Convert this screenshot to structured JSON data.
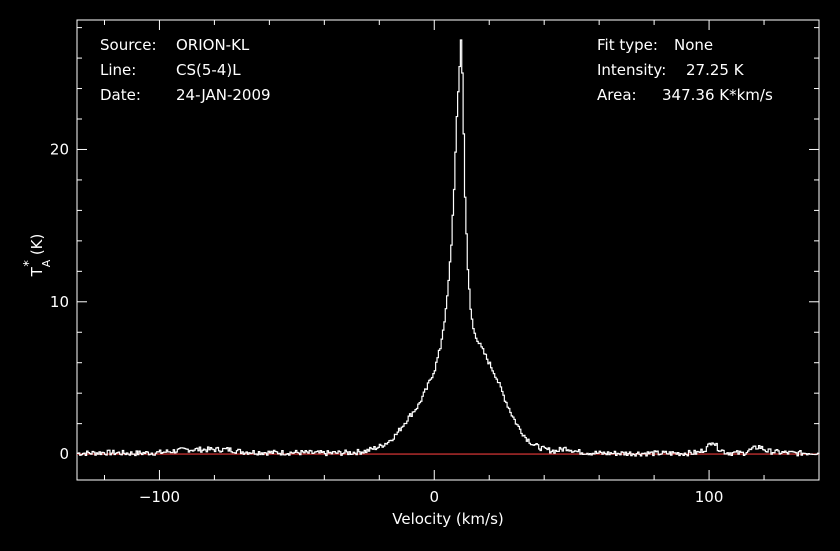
{
  "info": {
    "source_label": "Source:",
    "source_value": "ORION-KL",
    "line_label": "Line:",
    "line_value": "CS(5-4)L",
    "date_label": "Date:",
    "date_value": "24-JAN-2009",
    "fit_label": "Fit type:",
    "fit_value": "None",
    "intensity_label": "Intensity:",
    "intensity_value": "27.25 K",
    "area_label": "Area:",
    "area_value": "347.36 K*km/s"
  },
  "chart_data": {
    "type": "line",
    "title": "",
    "xlabel": "Velocity (km/s)",
    "ylabel_main": "T",
    "ylabel_sup": "*",
    "ylabel_sub": "A",
    "ylabel_unit": "(K)",
    "xlim": [
      -130,
      140
    ],
    "ylim": [
      -1.7,
      28.5
    ],
    "x_ticks": [
      {
        "value": -100,
        "label": "−100"
      },
      {
        "value": 0,
        "label": "0"
      },
      {
        "value": 100,
        "label": "100"
      }
    ],
    "y_ticks": [
      {
        "value": 0,
        "label": "0"
      },
      {
        "value": 10,
        "label": "10"
      },
      {
        "value": 20,
        "label": "20"
      }
    ],
    "grid": false,
    "series": [
      {
        "color": "#ffffff",
        "points": [
          [
            -130,
            0.05
          ],
          [
            -120,
            0.1
          ],
          [
            -110,
            0.05
          ],
          [
            -100,
            0.1
          ],
          [
            -90,
            0.3
          ],
          [
            -80,
            0.3
          ],
          [
            -75,
            0.3
          ],
          [
            -70,
            0.15
          ],
          [
            -60,
            0.1
          ],
          [
            -50,
            0.1
          ],
          [
            -40,
            0.05
          ],
          [
            -30,
            0.1
          ],
          [
            -25,
            0.2
          ],
          [
            -20,
            0.5
          ],
          [
            -17,
            0.8
          ],
          [
            -14,
            1.3
          ],
          [
            -10,
            2.3
          ],
          [
            -6,
            3.2
          ],
          [
            -3,
            4.3
          ],
          [
            0,
            5.6
          ],
          [
            2,
            7.0
          ],
          [
            4,
            9.4
          ],
          [
            5,
            11.3
          ],
          [
            6,
            13.8
          ],
          [
            7,
            17.5
          ],
          [
            8,
            22.0
          ],
          [
            9,
            25.5
          ],
          [
            9.5,
            27.25
          ],
          [
            10,
            25.0
          ],
          [
            11,
            17.0
          ],
          [
            12,
            12.0
          ],
          [
            13,
            9.5
          ],
          [
            14,
            8.2
          ],
          [
            16,
            7.3
          ],
          [
            18,
            6.6
          ],
          [
            20,
            5.9
          ],
          [
            22,
            5.2
          ],
          [
            24,
            4.3
          ],
          [
            26,
            3.4
          ],
          [
            28,
            2.6
          ],
          [
            30,
            1.9
          ],
          [
            33,
            1.1
          ],
          [
            36,
            0.6
          ],
          [
            40,
            0.3
          ],
          [
            44,
            0.2
          ],
          [
            48,
            0.4
          ],
          [
            52,
            0.15
          ],
          [
            60,
            0.05
          ],
          [
            70,
            0.05
          ],
          [
            80,
            0.05
          ],
          [
            90,
            0.05
          ],
          [
            96,
            0.1
          ],
          [
            99,
            0.4
          ],
          [
            101,
            0.9
          ],
          [
            103,
            0.4
          ],
          [
            106,
            0.1
          ],
          [
            112,
            0.05
          ],
          [
            118,
            0.5
          ],
          [
            121,
            0.2
          ],
          [
            126,
            0.1
          ],
          [
            132,
            0.05
          ],
          [
            138,
            0.1
          ],
          [
            140,
            0.05
          ]
        ]
      },
      {
        "color": "#c03030",
        "points": [
          [
            -130,
            0
          ],
          [
            140,
            0
          ]
        ]
      }
    ]
  }
}
